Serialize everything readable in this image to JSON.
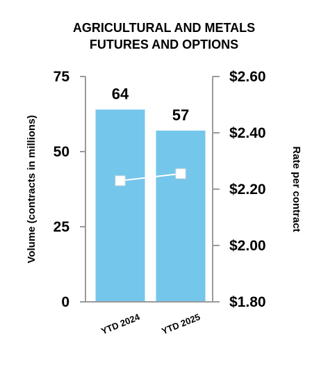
{
  "chart_data": {
    "type": "bar",
    "title_lines": [
      "AGRICULTURAL AND METALS",
      "FUTURES AND OPTIONS"
    ],
    "categories": [
      "YTD 2024",
      "YTD 2025"
    ],
    "series": [
      {
        "name": "Volume",
        "type": "bar",
        "axis": "left",
        "values": [
          64,
          57
        ],
        "data_labels": [
          "64",
          "57"
        ],
        "color": "#74C6EB"
      },
      {
        "name": "Rate per contract",
        "type": "line",
        "axis": "right",
        "values": [
          2.23,
          2.255
        ],
        "color": "#ffffff"
      }
    ],
    "y_left": {
      "label": "Volume (contracts in millions)",
      "range": [
        0,
        75
      ],
      "ticks": [
        0,
        25,
        50,
        75
      ],
      "tick_labels": [
        "0",
        "25",
        "50",
        "75"
      ]
    },
    "y_right": {
      "label": "Rate per contract",
      "range": [
        1.8,
        2.6
      ],
      "ticks": [
        1.8,
        2.0,
        2.2,
        2.4,
        2.6
      ],
      "tick_labels": [
        "$1.80",
        "$2.00",
        "$2.20",
        "$2.40",
        "$2.60"
      ]
    },
    "grid": false,
    "legend": "none",
    "axis_color": "#9a9a9a"
  }
}
